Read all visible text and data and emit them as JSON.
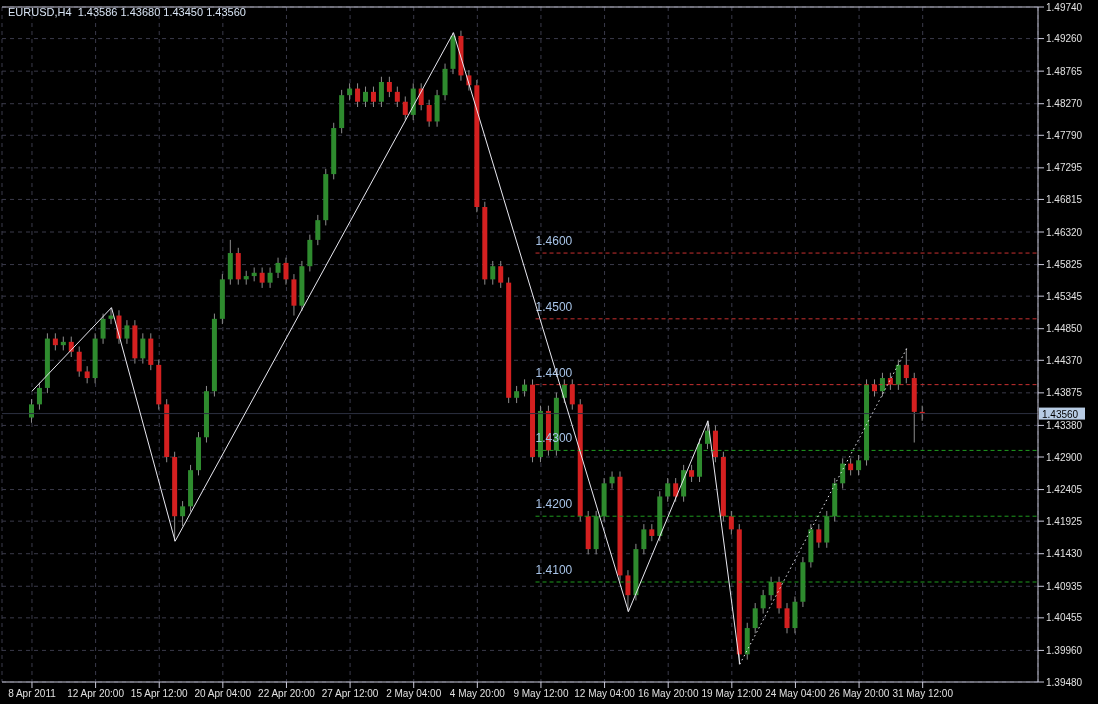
{
  "chart_data": {
    "type": "candlestick",
    "title": "EURUSD,H4  1.43586 1.43680 1.43450 1.43560",
    "categories": [
      "8 Apr 2011",
      null,
      null,
      null,
      null,
      null,
      null,
      null,
      "12 Apr 20:00",
      null,
      null,
      null,
      null,
      null,
      null,
      null,
      "15 Apr 12:00",
      null,
      null,
      null,
      null,
      null,
      null,
      null,
      "20 Apr 04:00",
      null,
      null,
      null,
      null,
      null,
      null,
      null,
      "22 Apr 20:00",
      null,
      null,
      null,
      null,
      null,
      null,
      null,
      "27 Apr 12:00",
      null,
      null,
      null,
      null,
      null,
      null,
      null,
      "2 May 04:00",
      null,
      null,
      null,
      null,
      null,
      null,
      null,
      "4 May 20:00",
      null,
      null,
      null,
      null,
      null,
      null,
      null,
      "9 May 12:00",
      null,
      null,
      null,
      null,
      null,
      null,
      null,
      "12 May 04:00",
      null,
      null,
      null,
      null,
      null,
      null,
      null,
      "16 May 20:00",
      null,
      null,
      null,
      null,
      null,
      null,
      null,
      "19 May 12:00",
      null,
      null,
      null,
      null,
      null,
      null,
      null,
      "24 May 04:00",
      null,
      null,
      null,
      null,
      null,
      null,
      null,
      "26 May 20:00",
      null,
      null,
      null,
      null,
      null,
      null,
      null,
      "31 May 12:00",
      null,
      null,
      null,
      null,
      null,
      null,
      null,
      null,
      null,
      null,
      null,
      null,
      null,
      null
    ],
    "ohlc": [
      [
        1.435,
        1.4378,
        1.4342,
        1.437
      ],
      [
        1.437,
        1.4403,
        1.4362,
        1.4395
      ],
      [
        1.4395,
        1.4478,
        1.4387,
        1.447
      ],
      [
        1.447,
        1.4478,
        1.4452,
        1.446
      ],
      [
        1.446,
        1.4473,
        1.4452,
        1.4465
      ],
      [
        1.4465,
        1.4473,
        1.4442,
        1.445
      ],
      [
        1.445,
        1.4458,
        1.4412,
        1.442
      ],
      [
        1.442,
        1.4428,
        1.4402,
        1.441
      ],
      [
        1.441,
        1.4478,
        1.4402,
        1.447
      ],
      [
        1.447,
        1.4508,
        1.4462,
        1.45
      ],
      [
        1.45,
        1.4517,
        1.4492,
        1.4505
      ],
      [
        1.4505,
        1.4513,
        1.4462,
        1.447
      ],
      [
        1.447,
        1.4498,
        1.4462,
        1.449
      ],
      [
        1.449,
        1.4498,
        1.4432,
        1.444
      ],
      [
        1.444,
        1.4478,
        1.4432,
        1.447
      ],
      [
        1.447,
        1.4478,
        1.4422,
        1.443
      ],
      [
        1.443,
        1.4438,
        1.4362,
        1.437
      ],
      [
        1.437,
        1.4378,
        1.4282,
        1.429
      ],
      [
        1.429,
        1.4298,
        1.4162,
        1.42
      ],
      [
        1.42,
        1.4223,
        1.4185,
        1.4215
      ],
      [
        1.4215,
        1.4278,
        1.4207,
        1.427
      ],
      [
        1.427,
        1.4328,
        1.4262,
        1.432
      ],
      [
        1.432,
        1.4398,
        1.4312,
        1.439
      ],
      [
        1.439,
        1.4508,
        1.4382,
        1.45
      ],
      [
        1.45,
        1.4568,
        1.4492,
        1.456
      ],
      [
        1.456,
        1.462,
        1.4552,
        1.46
      ],
      [
        1.46,
        1.4608,
        1.4552,
        1.456
      ],
      [
        1.456,
        1.4573,
        1.4552,
        1.4565
      ],
      [
        1.4565,
        1.4578,
        1.4557,
        1.457
      ],
      [
        1.457,
        1.4578,
        1.4547,
        1.4555
      ],
      [
        1.4555,
        1.4578,
        1.4547,
        1.457
      ],
      [
        1.457,
        1.4593,
        1.4562,
        1.4585
      ],
      [
        1.4585,
        1.4593,
        1.4552,
        1.456
      ],
      [
        1.456,
        1.4568,
        1.4505,
        1.452
      ],
      [
        1.452,
        1.4588,
        1.4512,
        1.458
      ],
      [
        1.458,
        1.4628,
        1.4572,
        1.462
      ],
      [
        1.462,
        1.4658,
        1.4612,
        1.465
      ],
      [
        1.465,
        1.4728,
        1.4642,
        1.472
      ],
      [
        1.472,
        1.4798,
        1.4712,
        1.479
      ],
      [
        1.479,
        1.4848,
        1.4782,
        1.484
      ],
      [
        1.484,
        1.4858,
        1.4832,
        1.485
      ],
      [
        1.485,
        1.4858,
        1.4822,
        1.483
      ],
      [
        1.483,
        1.4853,
        1.4822,
        1.4845
      ],
      [
        1.4845,
        1.4853,
        1.4822,
        1.483
      ],
      [
        1.483,
        1.4868,
        1.4822,
        1.486
      ],
      [
        1.486,
        1.4868,
        1.4837,
        1.4845
      ],
      [
        1.4845,
        1.4853,
        1.4822,
        1.483
      ],
      [
        1.483,
        1.4838,
        1.4802,
        1.481
      ],
      [
        1.481,
        1.4858,
        1.4802,
        1.485
      ],
      [
        1.485,
        1.4858,
        1.4817,
        1.4825
      ],
      [
        1.4825,
        1.4833,
        1.4792,
        1.48
      ],
      [
        1.48,
        1.4848,
        1.4792,
        1.484
      ],
      [
        1.484,
        1.4888,
        1.4832,
        1.488
      ],
      [
        1.488,
        1.4935,
        1.4872,
        1.493
      ],
      [
        1.493,
        1.4938,
        1.4862,
        1.487
      ],
      [
        1.487,
        1.4878,
        1.4847,
        1.4855
      ],
      [
        1.4855,
        1.4863,
        1.4662,
        1.467
      ],
      [
        1.467,
        1.4678,
        1.4552,
        1.456
      ],
      [
        1.456,
        1.4588,
        1.4552,
        1.458
      ],
      [
        1.458,
        1.4588,
        1.4547,
        1.4555
      ],
      [
        1.4555,
        1.4563,
        1.4372,
        1.438
      ],
      [
        1.438,
        1.4398,
        1.4372,
        1.439
      ],
      [
        1.439,
        1.4408,
        1.4382,
        1.44
      ],
      [
        1.44,
        1.4408,
        1.4282,
        1.429
      ],
      [
        1.429,
        1.4368,
        1.4282,
        1.436
      ],
      [
        1.436,
        1.4368,
        1.4292,
        1.43
      ],
      [
        1.43,
        1.4388,
        1.4292,
        1.438
      ],
      [
        1.438,
        1.4408,
        1.4372,
        1.44
      ],
      [
        1.44,
        1.4408,
        1.4362,
        1.437
      ],
      [
        1.437,
        1.4378,
        1.4192,
        1.42
      ],
      [
        1.42,
        1.4208,
        1.4142,
        1.415
      ],
      [
        1.415,
        1.4208,
        1.4142,
        1.42
      ],
      [
        1.42,
        1.4258,
        1.4192,
        1.425
      ],
      [
        1.425,
        1.4268,
        1.4242,
        1.426
      ],
      [
        1.426,
        1.4268,
        1.4102,
        1.411
      ],
      [
        1.411,
        1.4118,
        1.4055,
        1.408
      ],
      [
        1.408,
        1.4158,
        1.4072,
        1.415
      ],
      [
        1.415,
        1.4188,
        1.4142,
        1.418
      ],
      [
        1.418,
        1.4188,
        1.4162,
        1.417
      ],
      [
        1.417,
        1.4238,
        1.4162,
        1.423
      ],
      [
        1.423,
        1.4258,
        1.4222,
        1.425
      ],
      [
        1.425,
        1.4258,
        1.4222,
        1.423
      ],
      [
        1.423,
        1.4278,
        1.4222,
        1.427
      ],
      [
        1.427,
        1.4278,
        1.4252,
        1.426
      ],
      [
        1.426,
        1.4318,
        1.4252,
        1.431
      ],
      [
        1.431,
        1.4345,
        1.4302,
        1.433
      ],
      [
        1.433,
        1.4338,
        1.4282,
        1.429
      ],
      [
        1.429,
        1.4298,
        1.4192,
        1.42
      ],
      [
        1.42,
        1.4208,
        1.4172,
        1.418
      ],
      [
        1.418,
        1.4188,
        1.3975,
        1.399
      ],
      [
        1.399,
        1.4038,
        1.3982,
        1.403
      ],
      [
        1.403,
        1.4068,
        1.4022,
        1.406
      ],
      [
        1.406,
        1.4088,
        1.4052,
        1.408
      ],
      [
        1.408,
        1.4108,
        1.4072,
        1.41
      ],
      [
        1.41,
        1.4108,
        1.4052,
        1.406
      ],
      [
        1.406,
        1.4068,
        1.4022,
        1.403
      ],
      [
        1.403,
        1.4078,
        1.4022,
        1.407
      ],
      [
        1.407,
        1.4138,
        1.4062,
        1.413
      ],
      [
        1.413,
        1.4188,
        1.4122,
        1.418
      ],
      [
        1.418,
        1.4188,
        1.4152,
        1.416
      ],
      [
        1.416,
        1.4208,
        1.4152,
        1.42
      ],
      [
        1.42,
        1.4258,
        1.4192,
        1.425
      ],
      [
        1.425,
        1.4288,
        1.4242,
        1.428
      ],
      [
        1.428,
        1.4288,
        1.4262,
        1.427
      ],
      [
        1.427,
        1.4293,
        1.4262,
        1.4285
      ],
      [
        1.4285,
        1.4408,
        1.4277,
        1.44
      ],
      [
        1.44,
        1.4408,
        1.4382,
        1.439
      ],
      [
        1.439,
        1.4418,
        1.4382,
        1.441
      ],
      [
        1.441,
        1.4418,
        1.4392,
        1.44
      ],
      [
        1.44,
        1.4438,
        1.4392,
        1.443
      ],
      [
        1.443,
        1.4455,
        1.4402,
        1.441
      ],
      [
        1.441,
        1.4418,
        1.4312,
        1.43586
      ],
      [
        1.43586,
        1.4368,
        1.4345,
        1.4356
      ],
      null,
      null,
      null,
      null,
      null,
      null,
      null,
      null,
      null,
      null,
      null,
      null,
      null,
      null
    ],
    "colors": [
      "#2e8b2e",
      "#2e8b2e",
      "#2e8b2e",
      "#d42020",
      "#2e8b2e",
      "#d42020",
      "#d42020",
      "#d42020",
      "#2e8b2e",
      "#2e8b2e",
      "#2e8b2e",
      "#d42020",
      "#2e8b2e",
      "#d42020",
      "#2e8b2e",
      "#d42020",
      "#d42020",
      "#d42020",
      "#d42020",
      "#2e8b2e",
      "#2e8b2e",
      "#2e8b2e",
      "#2e8b2e",
      "#2e8b2e",
      "#2e8b2e",
      "#2e8b2e",
      "#d42020",
      "#2e8b2e",
      "#2e8b2e",
      "#d42020",
      "#2e8b2e",
      "#2e8b2e",
      "#d42020",
      "#d42020",
      "#2e8b2e",
      "#2e8b2e",
      "#2e8b2e",
      "#2e8b2e",
      "#2e8b2e",
      "#2e8b2e",
      "#2e8b2e",
      "#d42020",
      "#2e8b2e",
      "#d42020",
      "#2e8b2e",
      "#d42020",
      "#d42020",
      "#d42020",
      "#2e8b2e",
      "#d42020",
      "#d42020",
      "#2e8b2e",
      "#2e8b2e",
      "#2e8b2e",
      "#d42020",
      "#d42020",
      "#d42020",
      "#d42020",
      "#2e8b2e",
      "#d42020",
      "#d42020",
      "#2e8b2e",
      "#2e8b2e",
      "#d42020",
      "#2e8b2e",
      "#d42020",
      "#2e8b2e",
      "#2e8b2e",
      "#d42020",
      "#d42020",
      "#d42020",
      "#2e8b2e",
      "#2e8b2e",
      "#2e8b2e",
      "#d42020",
      "#d42020",
      "#2e8b2e",
      "#2e8b2e",
      "#d42020",
      "#2e8b2e",
      "#2e8b2e",
      "#d42020",
      "#2e8b2e",
      "#d42020",
      "#2e8b2e",
      "#2e8b2e",
      "#d42020",
      "#d42020",
      "#d42020",
      "#d42020",
      "#2e8b2e",
      "#2e8b2e",
      "#2e8b2e",
      "#2e8b2e",
      "#d42020",
      "#d42020",
      "#2e8b2e",
      "#2e8b2e",
      "#2e8b2e",
      "#d42020",
      "#2e8b2e",
      "#2e8b2e",
      "#2e8b2e",
      "#d42020",
      "#2e8b2e",
      "#2e8b2e",
      "#d42020",
      "#2e8b2e",
      "#d42020",
      "#2e8b2e",
      "#d42020",
      "#d42020",
      "#d42020",
      null,
      null,
      null,
      null,
      null,
      null,
      null,
      null,
      null,
      null,
      null,
      null,
      null,
      null
    ],
    "series": [
      {
        "type": "line",
        "color": "#e8e8f0",
        "line_style": "solid",
        "values": [
          1.439,
          null,
          null,
          null,
          null,
          null,
          null,
          null,
          null,
          null,
          1.4517,
          null,
          null,
          null,
          null,
          null,
          null,
          null,
          1.4162,
          null,
          null,
          null,
          null,
          null,
          null,
          null,
          null,
          null,
          null,
          null,
          null,
          null,
          null,
          null,
          null,
          null,
          null,
          null,
          null,
          null,
          null,
          null,
          null,
          null,
          null,
          null,
          null,
          null,
          null,
          null,
          null,
          null,
          null,
          1.4935,
          null,
          null,
          null,
          null,
          null,
          null,
          null,
          null,
          null,
          null,
          null,
          null,
          null,
          null,
          null,
          null,
          null,
          null,
          null,
          null,
          null,
          1.4055,
          null,
          null,
          null,
          null,
          null,
          null,
          null,
          null,
          null,
          1.4345,
          null,
          null,
          null,
          1.3975,
          null,
          null,
          null,
          null,
          null,
          null,
          null,
          null,
          null,
          null,
          null,
          null,
          null,
          null,
          null,
          null,
          null,
          null,
          null,
          null,
          null,
          null,
          null,
          null,
          null,
          null,
          null,
          null,
          null,
          null,
          null,
          null,
          null,
          null,
          null,
          null,
          null
        ]
      },
      {
        "type": "line",
        "color": "#e8e8f0",
        "line_style": "dotted",
        "values": [
          null,
          null,
          null,
          null,
          null,
          null,
          null,
          null,
          null,
          null,
          null,
          null,
          null,
          null,
          null,
          null,
          null,
          null,
          null,
          null,
          null,
          null,
          null,
          null,
          null,
          null,
          null,
          null,
          null,
          null,
          null,
          null,
          null,
          null,
          null,
          null,
          null,
          null,
          null,
          null,
          null,
          null,
          null,
          null,
          null,
          null,
          null,
          null,
          null,
          null,
          null,
          null,
          null,
          null,
          null,
          null,
          null,
          null,
          null,
          null,
          null,
          null,
          null,
          null,
          null,
          null,
          null,
          null,
          null,
          null,
          null,
          null,
          null,
          null,
          null,
          null,
          null,
          null,
          null,
          null,
          null,
          null,
          null,
          null,
          null,
          null,
          null,
          null,
          null,
          1.3975,
          null,
          null,
          null,
          null,
          null,
          null,
          null,
          null,
          null,
          null,
          null,
          null,
          null,
          null,
          null,
          null,
          null,
          null,
          null,
          null,
          1.4455,
          null,
          null,
          null,
          null,
          null,
          null,
          null,
          null,
          null,
          null,
          null,
          null,
          null,
          null,
          null,
          null
        ]
      }
    ],
    "ylim": [
      1.3948,
      1.4974
    ],
    "yticks": [
      {
        "value": 1.4974,
        "label": "1.49740"
      },
      {
        "value": 1.4926,
        "label": "1.49260"
      },
      {
        "value": 1.48765,
        "label": "1.48765"
      },
      {
        "value": 1.4827,
        "label": "1.48270"
      },
      {
        "value": 1.4779,
        "label": "1.47790"
      },
      {
        "value": 1.47295,
        "label": "1.47295"
      },
      {
        "value": 1.46815,
        "label": "1.46815"
      },
      {
        "value": 1.4632,
        "label": "1.46320"
      },
      {
        "value": 1.45825,
        "label": "1.45825"
      },
      {
        "value": 1.45345,
        "label": "1.45345"
      },
      {
        "value": 1.4485,
        "label": "1.44850"
      },
      {
        "value": 1.4437,
        "label": "1.44370"
      },
      {
        "value": 1.43875,
        "label": "1.43875"
      },
      {
        "value": 1.4338,
        "label": "1.43380"
      },
      {
        "value": 1.429,
        "label": "1.42900"
      },
      {
        "value": 1.42405,
        "label": "1.42405"
      },
      {
        "value": 1.41925,
        "label": "1.41925"
      },
      {
        "value": 1.4143,
        "label": "1.41430"
      },
      {
        "value": 1.40935,
        "label": "1.40935"
      },
      {
        "value": 1.40455,
        "label": "1.40455"
      },
      {
        "value": 1.3996,
        "label": "1.39960"
      },
      {
        "value": 1.3948,
        "label": "1.39480"
      }
    ],
    "grid": true,
    "ref_lines": [
      {
        "axis": "y",
        "value": 1.46,
        "label": "1.4600",
        "color": "#c83030",
        "line_style": "dashed"
      },
      {
        "axis": "y",
        "value": 1.45,
        "label": "1.4500",
        "color": "#c83030",
        "line_style": "dashed"
      },
      {
        "axis": "y",
        "value": 1.44,
        "label": "1.4400",
        "color": "#c83030",
        "line_style": "dashed"
      },
      {
        "axis": "y",
        "value": 1.43,
        "label": "1.4300",
        "color": "#1f9a1f",
        "line_style": "dashed"
      },
      {
        "axis": "y",
        "value": 1.42,
        "label": "1.4200",
        "color": "#1f9a1f",
        "line_style": "dashed"
      },
      {
        "axis": "y",
        "value": 1.41,
        "label": "1.4100",
        "color": "#1f9a1f",
        "line_style": "dashed"
      },
      {
        "axis": "y",
        "value": 1.4356,
        "label": "1.43560",
        "color": "#2c3040",
        "line_style": "solid"
      }
    ]
  }
}
